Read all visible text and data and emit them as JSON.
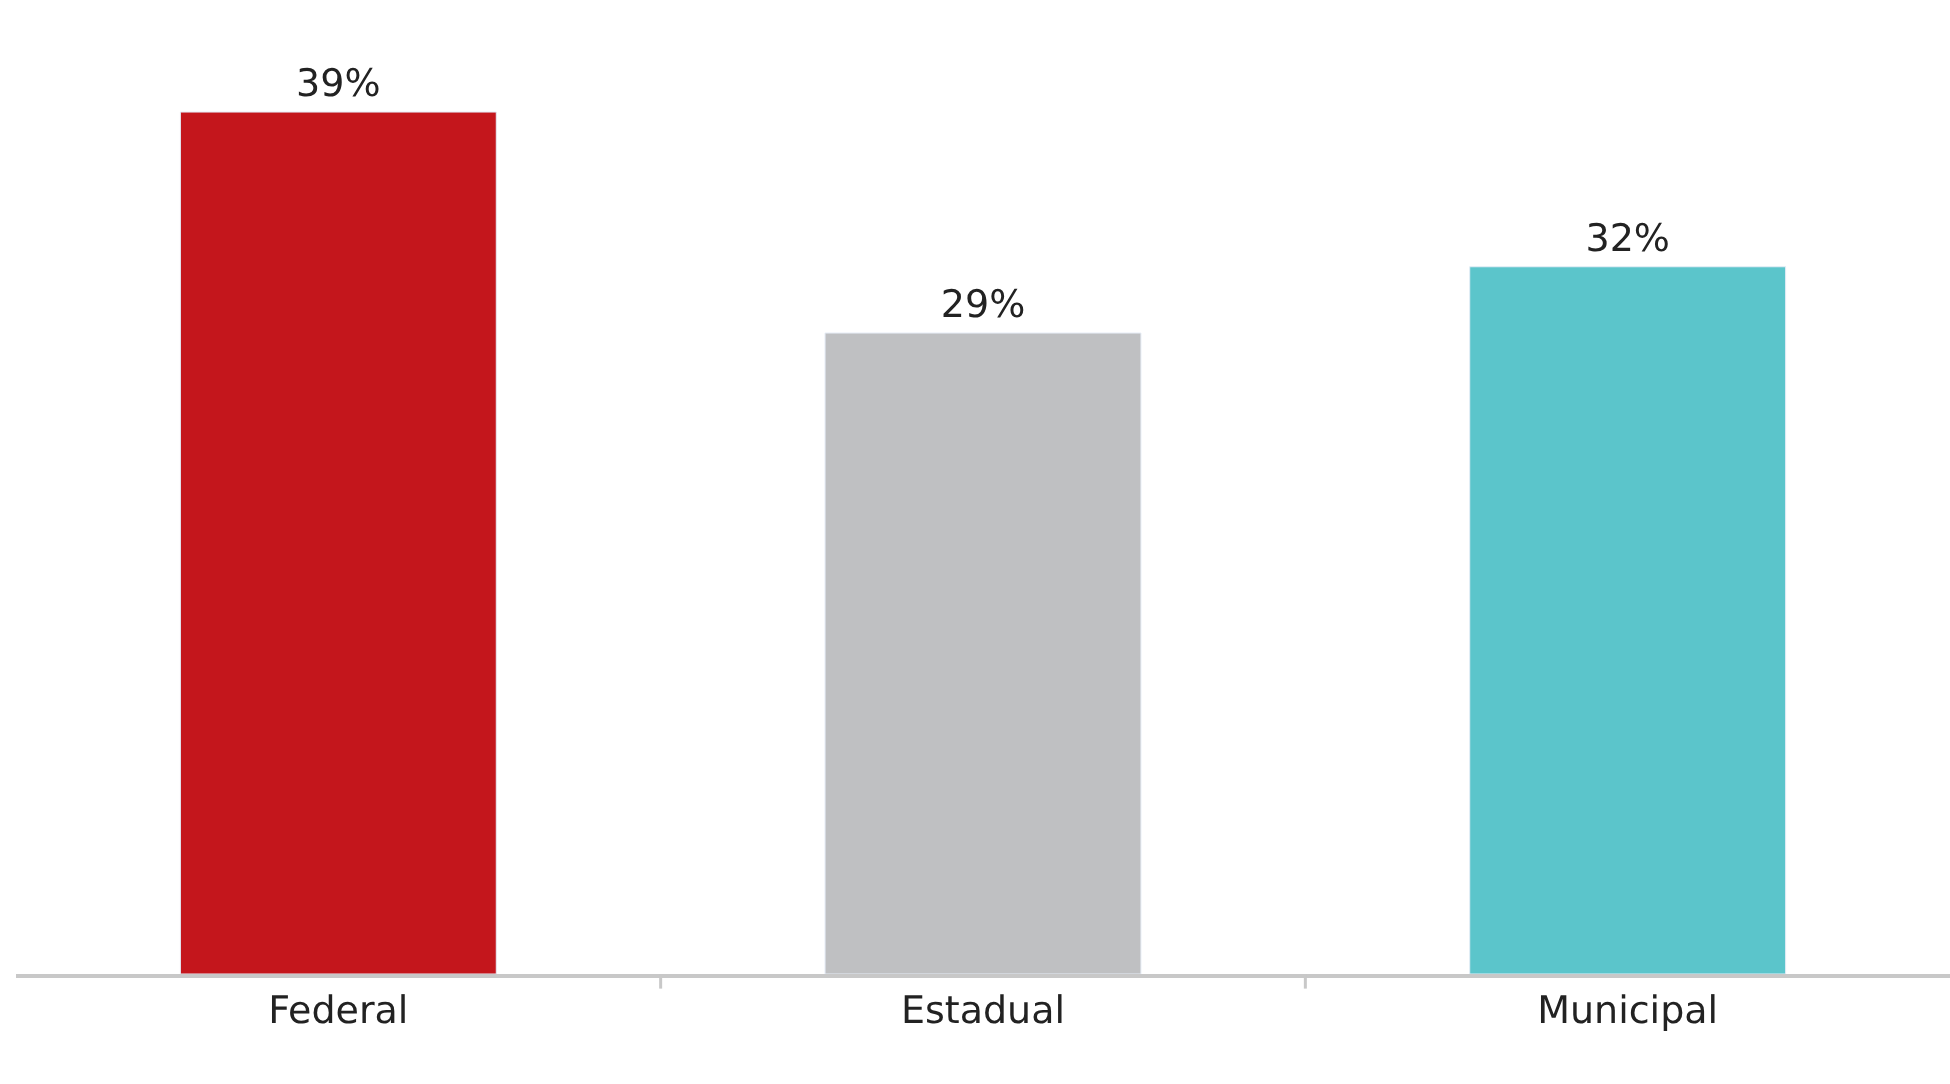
{
  "chart_data": {
    "type": "bar",
    "categories": [
      "Federal",
      "Estadual",
      "Municipal"
    ],
    "values": [
      39,
      29,
      32
    ],
    "colors": [
      "#c4161c",
      "#bfc0c2",
      "#5bc5cb"
    ],
    "value_labels": [
      "39%",
      "29%",
      "32%"
    ]
  }
}
